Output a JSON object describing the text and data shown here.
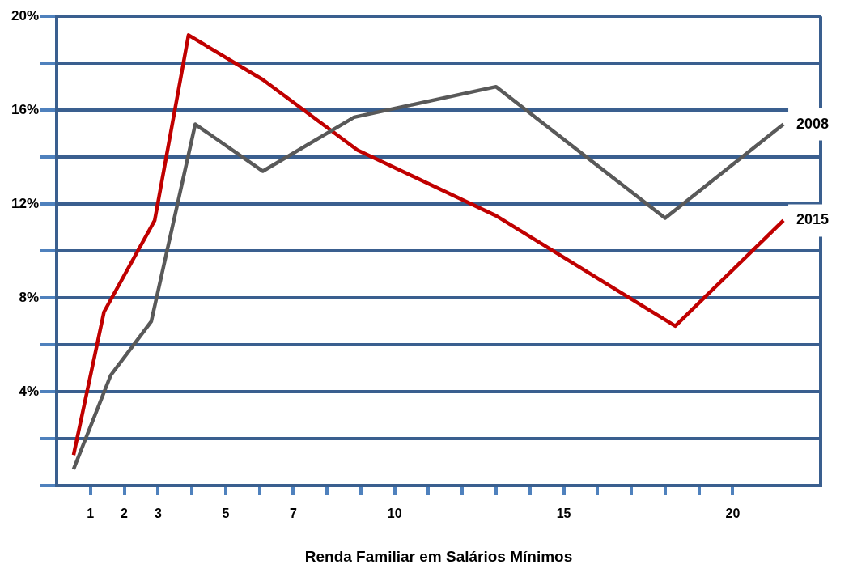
{
  "chart_data": {
    "type": "line",
    "xlabel": "Renda Familiar em Salários Mínimos",
    "xlim": [
      0,
      22.6
    ],
    "xticks": [
      {
        "value": 1,
        "label": "1"
      },
      {
        "value": 2,
        "label": "2"
      },
      {
        "value": 3,
        "label": "3"
      },
      {
        "value": 4,
        "label": null
      },
      {
        "value": 5,
        "label": "5"
      },
      {
        "value": 6,
        "label": null
      },
      {
        "value": 7,
        "label": "7"
      },
      {
        "value": 8,
        "label": null
      },
      {
        "value": 9,
        "label": null
      },
      {
        "value": 10,
        "label": "10"
      },
      {
        "value": 11,
        "label": null
      },
      {
        "value": 12,
        "label": null
      },
      {
        "value": 13,
        "label": null
      },
      {
        "value": 14,
        "label": null
      },
      {
        "value": 15,
        "label": "15"
      },
      {
        "value": 16,
        "label": null
      },
      {
        "value": 17,
        "label": null
      },
      {
        "value": 18,
        "label": null
      },
      {
        "value": 19,
        "label": null
      },
      {
        "value": 20,
        "label": "20"
      }
    ],
    "ylim": [
      0,
      20
    ],
    "yticks": [
      {
        "value": 0,
        "label": null
      },
      {
        "value": 2,
        "label": null
      },
      {
        "value": 4,
        "label": "4%"
      },
      {
        "value": 6,
        "label": null
      },
      {
        "value": 8,
        "label": "8%"
      },
      {
        "value": 10,
        "label": null
      },
      {
        "value": 12,
        "label": "12%"
      },
      {
        "value": 14,
        "label": null
      },
      {
        "value": 16,
        "label": "16%"
      },
      {
        "value": 18,
        "label": null
      },
      {
        "value": 20,
        "label": "20%"
      }
    ],
    "grid": "y",
    "legend": false,
    "marker": "none",
    "line_style": "solid",
    "series": [
      {
        "name": "2008",
        "color": "#595959",
        "x": [
          0.5,
          1.6,
          2.8,
          4.1,
          6.1,
          8.8,
          13.0,
          18.0,
          21.5
        ],
        "values": [
          0.7,
          4.7,
          7.0,
          15.4,
          13.4,
          15.7,
          17.0,
          11.4,
          15.4
        ]
      },
      {
        "name": "2015",
        "color": "#c00000",
        "x": [
          0.5,
          1.4,
          2.9,
          3.9,
          6.1,
          8.9,
          13.0,
          18.3,
          21.5
        ],
        "values": [
          1.3,
          7.4,
          11.3,
          19.2,
          17.3,
          14.3,
          11.5,
          6.8,
          11.3
        ]
      }
    ]
  }
}
